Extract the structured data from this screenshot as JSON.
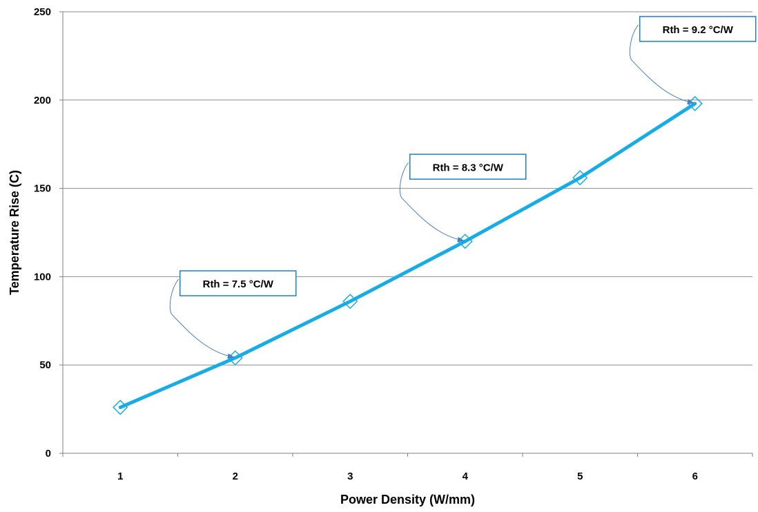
{
  "chart_data": {
    "type": "line",
    "xlabel": "Power Density (W/mm)",
    "ylabel": "Temperature Rise (C)",
    "ylim": [
      0,
      250
    ],
    "yticks": [
      0,
      50,
      100,
      150,
      200,
      250
    ],
    "categories": [
      "1",
      "2",
      "3",
      "4",
      "5",
      "6"
    ],
    "x": [
      1,
      2,
      3,
      4,
      5,
      6
    ],
    "series": [
      {
        "values": [
          26,
          54,
          86,
          120,
          156,
          198
        ]
      }
    ],
    "marker": "diamond",
    "grid": "horizontal",
    "legend": "none",
    "line_color": "#18ace6",
    "annotations": [
      {
        "text": "Rth = 7.5 °C/W",
        "x": 2,
        "y": 54
      },
      {
        "text": "Rth = 8.3 °C/W",
        "x": 4,
        "y": 120
      },
      {
        "text": "Rth = 9.2 °C/W",
        "x": 6,
        "y": 198
      }
    ]
  }
}
